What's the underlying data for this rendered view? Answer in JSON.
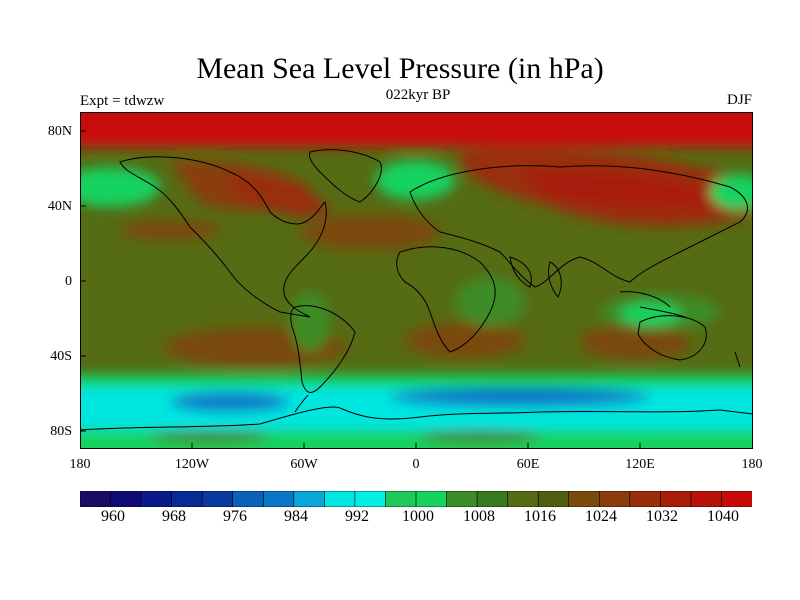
{
  "title": "Mean Sea Level Pressure (in hPa)",
  "left_label": "Expt = tdwzw",
  "center_label": "022kyr BP",
  "right_label": "DJF",
  "lat_ticks": [
    "80N",
    "40N",
    "0",
    "40S",
    "80S"
  ],
  "lon_ticks": [
    "180",
    "120W",
    "60W",
    "0",
    "60E",
    "120E",
    "180"
  ],
  "colorbar": {
    "labels": [
      "960",
      "968",
      "976",
      "984",
      "992",
      "1000",
      "1008",
      "1016",
      "1024",
      "1032",
      "1040"
    ],
    "colors": [
      "#1b0a66",
      "#0f0a78",
      "#0a1a88",
      "#072a96",
      "#0a3aa0",
      "#0a62b8",
      "#0a76c8",
      "#0aa6d8",
      "#00e6e0",
      "#00f0e6",
      "#1ec85a",
      "#16d25e",
      "#3c8c28",
      "#3a7a1e",
      "#556b14",
      "#4f5e10",
      "#7a4a0a",
      "#8a3c0a",
      "#9a2e0a",
      "#a81e0a",
      "#b8120a",
      "#c80a0a"
    ]
  },
  "legend_colors": {
    "land_outline": "#000000",
    "low_pressure": "#0a76c8",
    "subpolar_trough": "#00e6e0",
    "mid_low": "#16d25e",
    "mid": "#556b14",
    "mid_high": "#7a4a0a",
    "high": "#c80a0a"
  }
}
